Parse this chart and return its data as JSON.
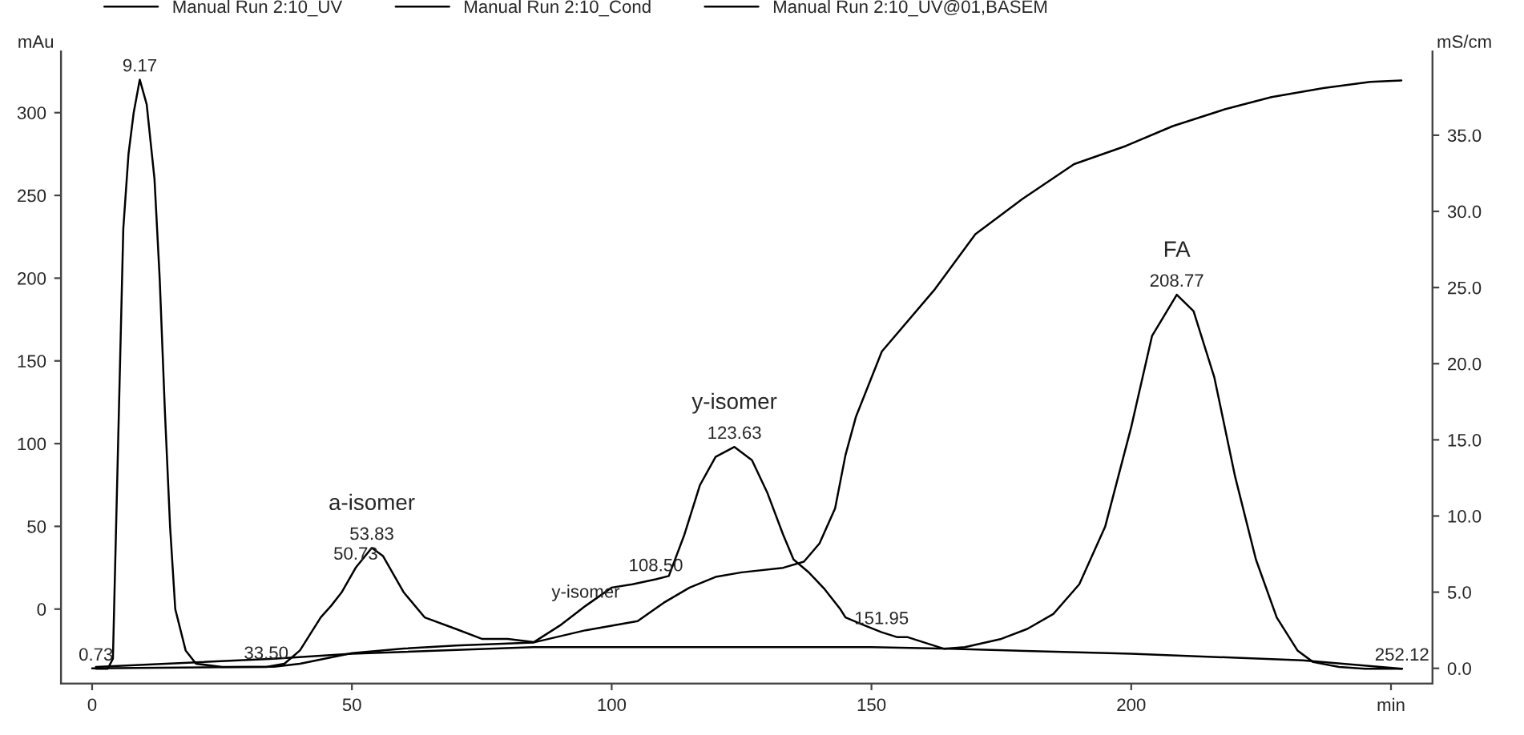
{
  "chart_data": {
    "type": "line",
    "ylabel": "mAu",
    "y2label": "mS/cm",
    "xlim": [
      -6,
      258
    ],
    "xticks": [
      0,
      50,
      100,
      150,
      200,
      {
        "value": 250,
        "label": "min"
      }
    ],
    "ylim": [
      -45,
      337
    ],
    "yticks": [
      0,
      50,
      100,
      150,
      200,
      250,
      300
    ],
    "y2lim": [
      -1.0,
      40.5
    ],
    "y2ticks": [
      {
        "value": 0,
        "label": "0.0"
      },
      {
        "value": 5,
        "label": "5.0"
      },
      {
        "value": 10,
        "label": "10.0"
      },
      {
        "value": 15,
        "label": "15.0"
      },
      {
        "value": 20,
        "label": "20.0"
      },
      {
        "value": 25,
        "label": "25.0"
      },
      {
        "value": 30,
        "label": "30.0"
      },
      {
        "value": 35,
        "label": "35.0"
      }
    ],
    "grid": false,
    "legend": "top",
    "line_style": "solid",
    "marker": "none",
    "series": [
      {
        "name": "Manual Run 2:10_UV",
        "color": "#000000",
        "x": [
          0.73,
          3,
          4,
          5,
          6,
          7,
          8,
          9.17,
          10.5,
          12,
          13,
          14,
          15,
          16,
          18,
          20,
          25,
          33.5,
          37,
          40,
          44,
          46,
          48,
          50.73,
          53.83,
          56,
          60,
          64,
          70,
          75,
          80,
          85,
          90,
          95,
          100,
          104,
          108.5,
          111,
          114,
          117,
          120,
          123.63,
          127,
          130,
          133,
          135,
          138,
          141,
          144,
          145,
          148,
          151.95,
          155,
          157,
          160,
          164,
          168,
          175,
          180,
          185,
          190,
          195,
          200,
          204,
          208.77,
          212,
          216,
          220,
          224,
          228,
          232,
          235,
          240,
          245,
          252.12
        ],
        "values": [
          -36,
          -36,
          -30,
          100,
          230,
          275,
          300,
          320,
          305,
          260,
          200,
          120,
          50,
          0,
          -25,
          -33,
          -35,
          -35,
          -33,
          -25,
          -5,
          2,
          10,
          25,
          37,
          32,
          10,
          -5,
          -12,
          -18,
          -18,
          -20,
          -10,
          2,
          13,
          15,
          18,
          20,
          45,
          75,
          92,
          98,
          90,
          70,
          45,
          30,
          22,
          12,
          0,
          -5,
          -9,
          -14,
          -17,
          -17,
          -20,
          -24,
          -23,
          -18,
          -12,
          -3,
          15,
          50,
          110,
          165,
          190,
          180,
          140,
          80,
          30,
          -5,
          -25,
          -32,
          -35,
          -36,
          -36
        ]
      },
      {
        "name": "Manual Run 2:10_Cond",
        "color": "#000000",
        "axis": "y2",
        "x": [
          0,
          35,
          40,
          50,
          60,
          70,
          85,
          95,
          100,
          105,
          110,
          115,
          120,
          125,
          133,
          137,
          140,
          143,
          145,
          147,
          152,
          162,
          170,
          179,
          189,
          199,
          208,
          218,
          227,
          237,
          246,
          252
        ],
        "values": [
          0.0,
          0.1,
          0.3,
          1.0,
          1.3,
          1.5,
          1.7,
          2.5,
          2.8,
          3.1,
          4.3,
          5.3,
          6.0,
          6.3,
          6.6,
          7.0,
          8.2,
          10.5,
          14.0,
          16.5,
          20.8,
          24.8,
          28.5,
          30.8,
          33.1,
          34.3,
          35.6,
          36.7,
          37.5,
          38.1,
          38.5,
          38.6
        ]
      },
      {
        "name": "Manual Run 2:10_UV@01,BASEM",
        "color": "#000000",
        "x": [
          0.73,
          35,
          50,
          85,
          100,
          150,
          165,
          200,
          233,
          252.12
        ],
        "values": [
          -35,
          -30,
          -27,
          -23,
          -23,
          -23,
          -24,
          -27,
          -31,
          -36
        ]
      }
    ],
    "annotations": [
      {
        "text": "9.17",
        "x": 9.17,
        "y": 320
      },
      {
        "text": "0.73",
        "x": 0.73,
        "y": -36
      },
      {
        "text": "33.50",
        "x": 33.5,
        "y": -35
      },
      {
        "text": "50.73",
        "x": 50.73,
        "y": 25
      },
      {
        "text": "53.83",
        "x": 53.83,
        "y": 37
      },
      {
        "text": "a-isomer",
        "x": 53.83,
        "y": 37
      },
      {
        "text": "y-isomer",
        "x": 95,
        "y": 2
      },
      {
        "text": "108.50",
        "x": 108.5,
        "y": 18
      },
      {
        "text": "123.63",
        "x": 123.63,
        "y": 98
      },
      {
        "text": "y-isomer",
        "x": 123.63,
        "y": 98
      },
      {
        "text": "151.95",
        "x": 151.95,
        "y": -14
      },
      {
        "text": "208.77",
        "x": 208.77,
        "y": 190
      },
      {
        "text": "FA",
        "x": 208.77,
        "y": 190
      },
      {
        "text": "252.12",
        "x": 252.12,
        "y": -36
      }
    ]
  }
}
